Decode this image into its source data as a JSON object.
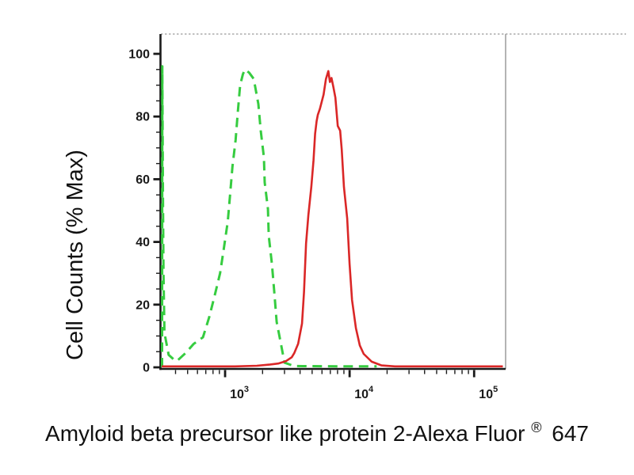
{
  "figure": {
    "background": "#ffffff",
    "y_axis_title": "Cell Counts (% Max)",
    "x_axis_title": {
      "pre": "Amyloid beta precursor like protein 2-Alexa Fluor",
      "sup": "®",
      "post": "647"
    }
  },
  "chart_data": {
    "type": "line",
    "subtype": "flow-cytometry-histogram-overlay",
    "title": "",
    "xlabel": "Amyloid beta precursor like protein 2-Alexa Fluor® 647",
    "ylabel": "Cell Counts (% Max)",
    "x_scale": "log",
    "xlim": [
      305,
      179000
    ],
    "ylim": [
      0,
      106
    ],
    "grid": false,
    "legend": "none",
    "axis_color": "#1a1a1a",
    "frame": {
      "top_style": "dotted",
      "right_style": "solid",
      "color": "#9b9b9b"
    },
    "x_ticks": [
      {
        "value": 1000,
        "base": "10",
        "exp": "3"
      },
      {
        "value": 10000,
        "base": "10",
        "exp": "4"
      },
      {
        "value": 100000,
        "base": "10",
        "exp": "5"
      }
    ],
    "x_minor_ticks": "log-decade-2-to-9",
    "y_ticks": [
      {
        "value": 0,
        "label": "0"
      },
      {
        "value": 20,
        "label": "20"
      },
      {
        "value": 40,
        "label": "40"
      },
      {
        "value": 60,
        "label": "60"
      },
      {
        "value": 80,
        "label": "80"
      },
      {
        "value": 100,
        "label": "100"
      }
    ],
    "y_minor_step": 5,
    "series": [
      {
        "name": "green-dashed",
        "color": "#36cc40",
        "line_style": "dashed",
        "peak_x": 1440,
        "peak_y": 95,
        "points": [
          [
            312,
            0
          ],
          [
            313,
            96
          ],
          [
            317,
            55
          ],
          [
            320,
            30
          ],
          [
            326,
            11
          ],
          [
            352,
            4
          ],
          [
            388,
            2.5
          ],
          [
            410,
            2
          ],
          [
            480,
            4.5
          ],
          [
            560,
            7.5
          ],
          [
            664,
            9.6
          ],
          [
            746,
            16
          ],
          [
            826,
            23
          ],
          [
            912,
            30
          ],
          [
            978,
            38
          ],
          [
            1050,
            46.5
          ],
          [
            1097,
            55
          ],
          [
            1146,
            64
          ],
          [
            1214,
            72.5
          ],
          [
            1266,
            81.5
          ],
          [
            1320,
            90
          ],
          [
            1390,
            93.5
          ],
          [
            1443,
            95
          ],
          [
            1560,
            94
          ],
          [
            1700,
            92
          ],
          [
            1851,
            84
          ],
          [
            1934,
            75.5
          ],
          [
            2051,
            67
          ],
          [
            2081,
            59
          ],
          [
            2208,
            50.5
          ],
          [
            2241,
            42
          ],
          [
            2376,
            33
          ],
          [
            2482,
            24
          ],
          [
            2594,
            14.5
          ],
          [
            2791,
            8
          ],
          [
            3001,
            1.5
          ],
          [
            3590,
            0.4
          ],
          [
            9000,
            0.3
          ],
          [
            16500,
            0.3
          ]
        ]
      },
      {
        "name": "red-solid",
        "color": "#da2727",
        "line_style": "solid",
        "peak_x": 6745,
        "peak_y": 94.5,
        "points": [
          [
            310,
            0.3
          ],
          [
            1200,
            0.3
          ],
          [
            1800,
            0.5
          ],
          [
            2300,
            0.9
          ],
          [
            2670,
            1.2
          ],
          [
            3090,
            2
          ],
          [
            3430,
            3.2
          ],
          [
            3590,
            4.5
          ],
          [
            3860,
            7.5
          ],
          [
            4150,
            14
          ],
          [
            4300,
            24
          ],
          [
            4467,
            39.5
          ],
          [
            4662,
            48.5
          ],
          [
            4926,
            57.5
          ],
          [
            5132,
            66
          ],
          [
            5285,
            74.5
          ],
          [
            5430,
            78.5
          ],
          [
            5550,
            80.5
          ],
          [
            5780,
            82.5
          ],
          [
            6180,
            87
          ],
          [
            6460,
            92
          ],
          [
            6745,
            94.5
          ],
          [
            6945,
            91
          ],
          [
            7150,
            92.3
          ],
          [
            7400,
            89.5
          ],
          [
            7690,
            86
          ],
          [
            8030,
            77
          ],
          [
            8390,
            75.5
          ],
          [
            8640,
            69.5
          ],
          [
            9010,
            57.5
          ],
          [
            9560,
            47.5
          ],
          [
            10000,
            33
          ],
          [
            10450,
            21.5
          ],
          [
            11230,
            12.5
          ],
          [
            12070,
            7
          ],
          [
            12980,
            4.3
          ],
          [
            15060,
            1.8
          ],
          [
            18070,
            0.6
          ],
          [
            23100,
            0.3
          ],
          [
            170000,
            0.3
          ]
        ]
      }
    ]
  }
}
